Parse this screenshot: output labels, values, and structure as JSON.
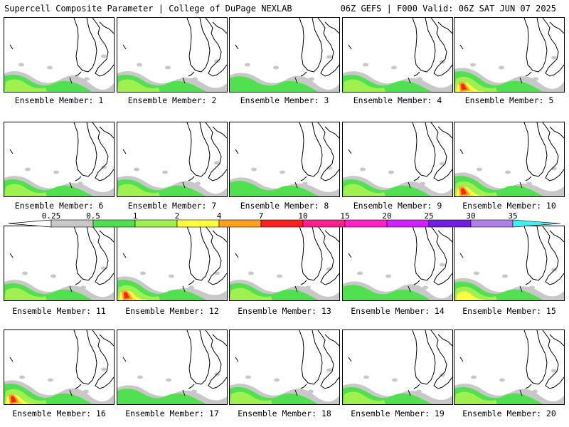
{
  "header": {
    "title_left": "Supercell Composite Parameter | College of DuPage NEXLAB",
    "title_right": "06Z GEFS | F000 Valid: 06Z SAT JUN 07 2025"
  },
  "legend": {
    "levels": [
      "0.25",
      "0.5",
      "1",
      "2",
      "4",
      "7",
      "10",
      "15",
      "20",
      "25",
      "30",
      "35"
    ],
    "colors": [
      "#c8c8c8",
      "#50e050",
      "#a0f050",
      "#ffff40",
      "#ffa020",
      "#ff2020",
      "#ff2090",
      "#ff20c8",
      "#d020ff",
      "#7020e0",
      "#b080e8",
      "#40f0f0"
    ]
  },
  "fill_colors": {
    "gray": "#c8c8c8",
    "green": "#50e050",
    "lightgreen": "#a0f050",
    "yellow": "#ffff40",
    "orange": "#ffa020",
    "red": "#ff2020"
  },
  "members": [
    {
      "label": "Ensemble Member: 1",
      "intensity": 2
    },
    {
      "label": "Ensemble Member: 2",
      "intensity": 2
    },
    {
      "label": "Ensemble Member: 3",
      "intensity": 1
    },
    {
      "label": "Ensemble Member: 4",
      "intensity": 2
    },
    {
      "label": "Ensemble Member: 5",
      "intensity": 4
    },
    {
      "label": "Ensemble Member: 6",
      "intensity": 2
    },
    {
      "label": "Ensemble Member: 7",
      "intensity": 2
    },
    {
      "label": "Ensemble Member: 8",
      "intensity": 1
    },
    {
      "label": "Ensemble Member: 9",
      "intensity": 2
    },
    {
      "label": "Ensemble Member: 10",
      "intensity": 4
    },
    {
      "label": "Ensemble Member: 11",
      "intensity": 2
    },
    {
      "label": "Ensemble Member: 12",
      "intensity": 4
    },
    {
      "label": "Ensemble Member: 13",
      "intensity": 2
    },
    {
      "label": "Ensemble Member: 14",
      "intensity": 1
    },
    {
      "label": "Ensemble Member: 15",
      "intensity": 3
    },
    {
      "label": "Ensemble Member: 16",
      "intensity": 4
    },
    {
      "label": "Ensemble Member: 17",
      "intensity": 1
    },
    {
      "label": "Ensemble Member: 18",
      "intensity": 2
    },
    {
      "label": "Ensemble Member: 19",
      "intensity": 2
    },
    {
      "label": "Ensemble Member: 20",
      "intensity": 2
    }
  ]
}
